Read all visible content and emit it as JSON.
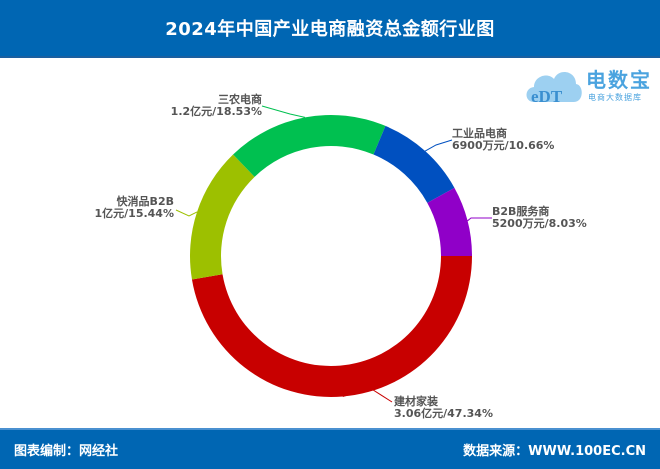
{
  "header": {
    "title": "2024年中国产业电商融资总金额行业图"
  },
  "logo": {
    "brand": "电数宝",
    "sub": "电商大数据库",
    "mark": "eDT",
    "color": "#4aa3df"
  },
  "footer": {
    "left": "图表编制：网经社",
    "right": "数据来源：WWW.100EC.CN"
  },
  "colors": {
    "header_bg": "#0066b3",
    "label_text": "#555555"
  },
  "chart_data": {
    "type": "pie",
    "variant": "donut",
    "title": "2024年中国产业电商融资总金额行业图",
    "start_angle": "3 o'clock, clockwise",
    "slices": [
      {
        "name": "建材家装",
        "amount": "3.06亿元",
        "percent": 47.34,
        "label": "3.06亿元/47.34%",
        "color": "#c80000"
      },
      {
        "name": "快消品B2B",
        "amount": "1亿元",
        "percent": 15.44,
        "label": "1亿元/15.44%",
        "color": "#9dc000"
      },
      {
        "name": "三农电商",
        "amount": "1.2亿元",
        "percent": 18.53,
        "label": "1.2亿元/18.53%",
        "color": "#00c050"
      },
      {
        "name": "工业品电商",
        "amount": "6900万元",
        "percent": 10.66,
        "label": "6900万元/10.66%",
        "color": "#0050c0"
      },
      {
        "name": "B2B服务商",
        "amount": "5200万元",
        "percent": 8.03,
        "label": "5200万元/8.03%",
        "color": "#9000c8"
      }
    ],
    "categories": [
      "建材家装",
      "快消品B2B",
      "三农电商",
      "工业品电商",
      "B2B服务商"
    ],
    "values": [
      47.34,
      15.44,
      18.53,
      10.66,
      8.03
    ],
    "amounts": [
      "3.06亿元",
      "1亿元",
      "1.2亿元",
      "6900万元",
      "5200万元"
    ],
    "legend": "none (leader-line labels)"
  }
}
